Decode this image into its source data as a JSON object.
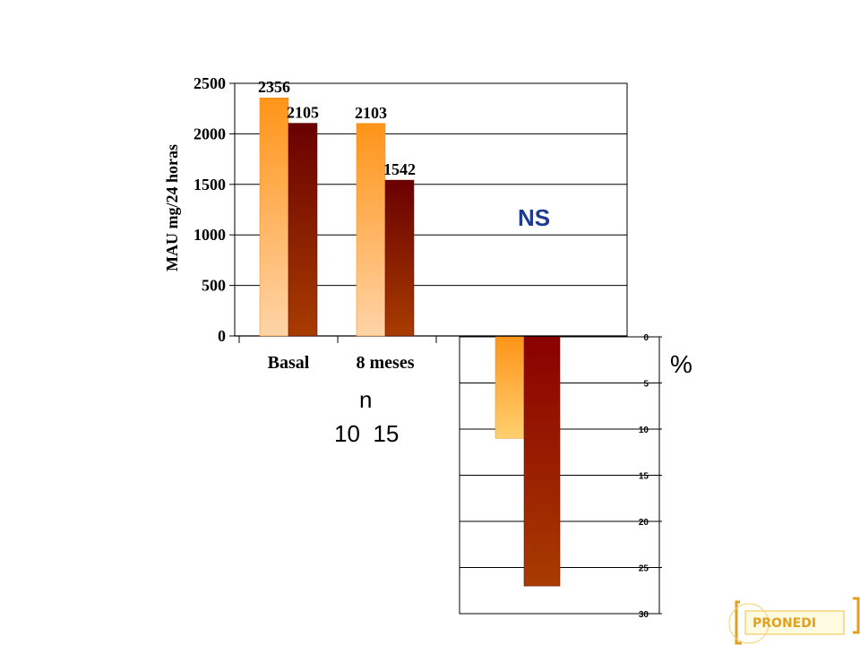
{
  "chart_data": [
    {
      "type": "bar",
      "ylabel": "MAU mg/24 horas",
      "categories": [
        "Basal",
        "8 meses"
      ],
      "series": [
        {
          "values": [
            2356,
            2103
          ]
        },
        {
          "values": [
            2105,
            1542
          ]
        }
      ],
      "data_labels": [
        [
          "2356",
          "2103"
        ],
        [
          "2105",
          "1542"
        ]
      ],
      "yticks": [
        "0",
        "500",
        "1000",
        "1500",
        "2000",
        "2500"
      ],
      "ylim": [
        0,
        2500
      ],
      "grid": true
    },
    {
      "type": "bar",
      "values": [
        -11,
        -27
      ],
      "yticks": [
        "0",
        "5",
        "10",
        "15",
        "20",
        "25",
        "30"
      ],
      "ylim": [
        -30,
        0
      ],
      "grid": true,
      "unit": "%"
    }
  ],
  "annotations": {
    "significance": "NS",
    "n_label": "n",
    "n_values": "10  15"
  },
  "logo": {
    "text": "PRONEDI"
  },
  "colors": {
    "orange": "#ff9a1a",
    "orange_light": "#ffd0a0",
    "dark_red": "#6b0000",
    "brown": "#a03a00",
    "ns_blue": "#1f3a93",
    "logo_gold": "#e0a020"
  }
}
